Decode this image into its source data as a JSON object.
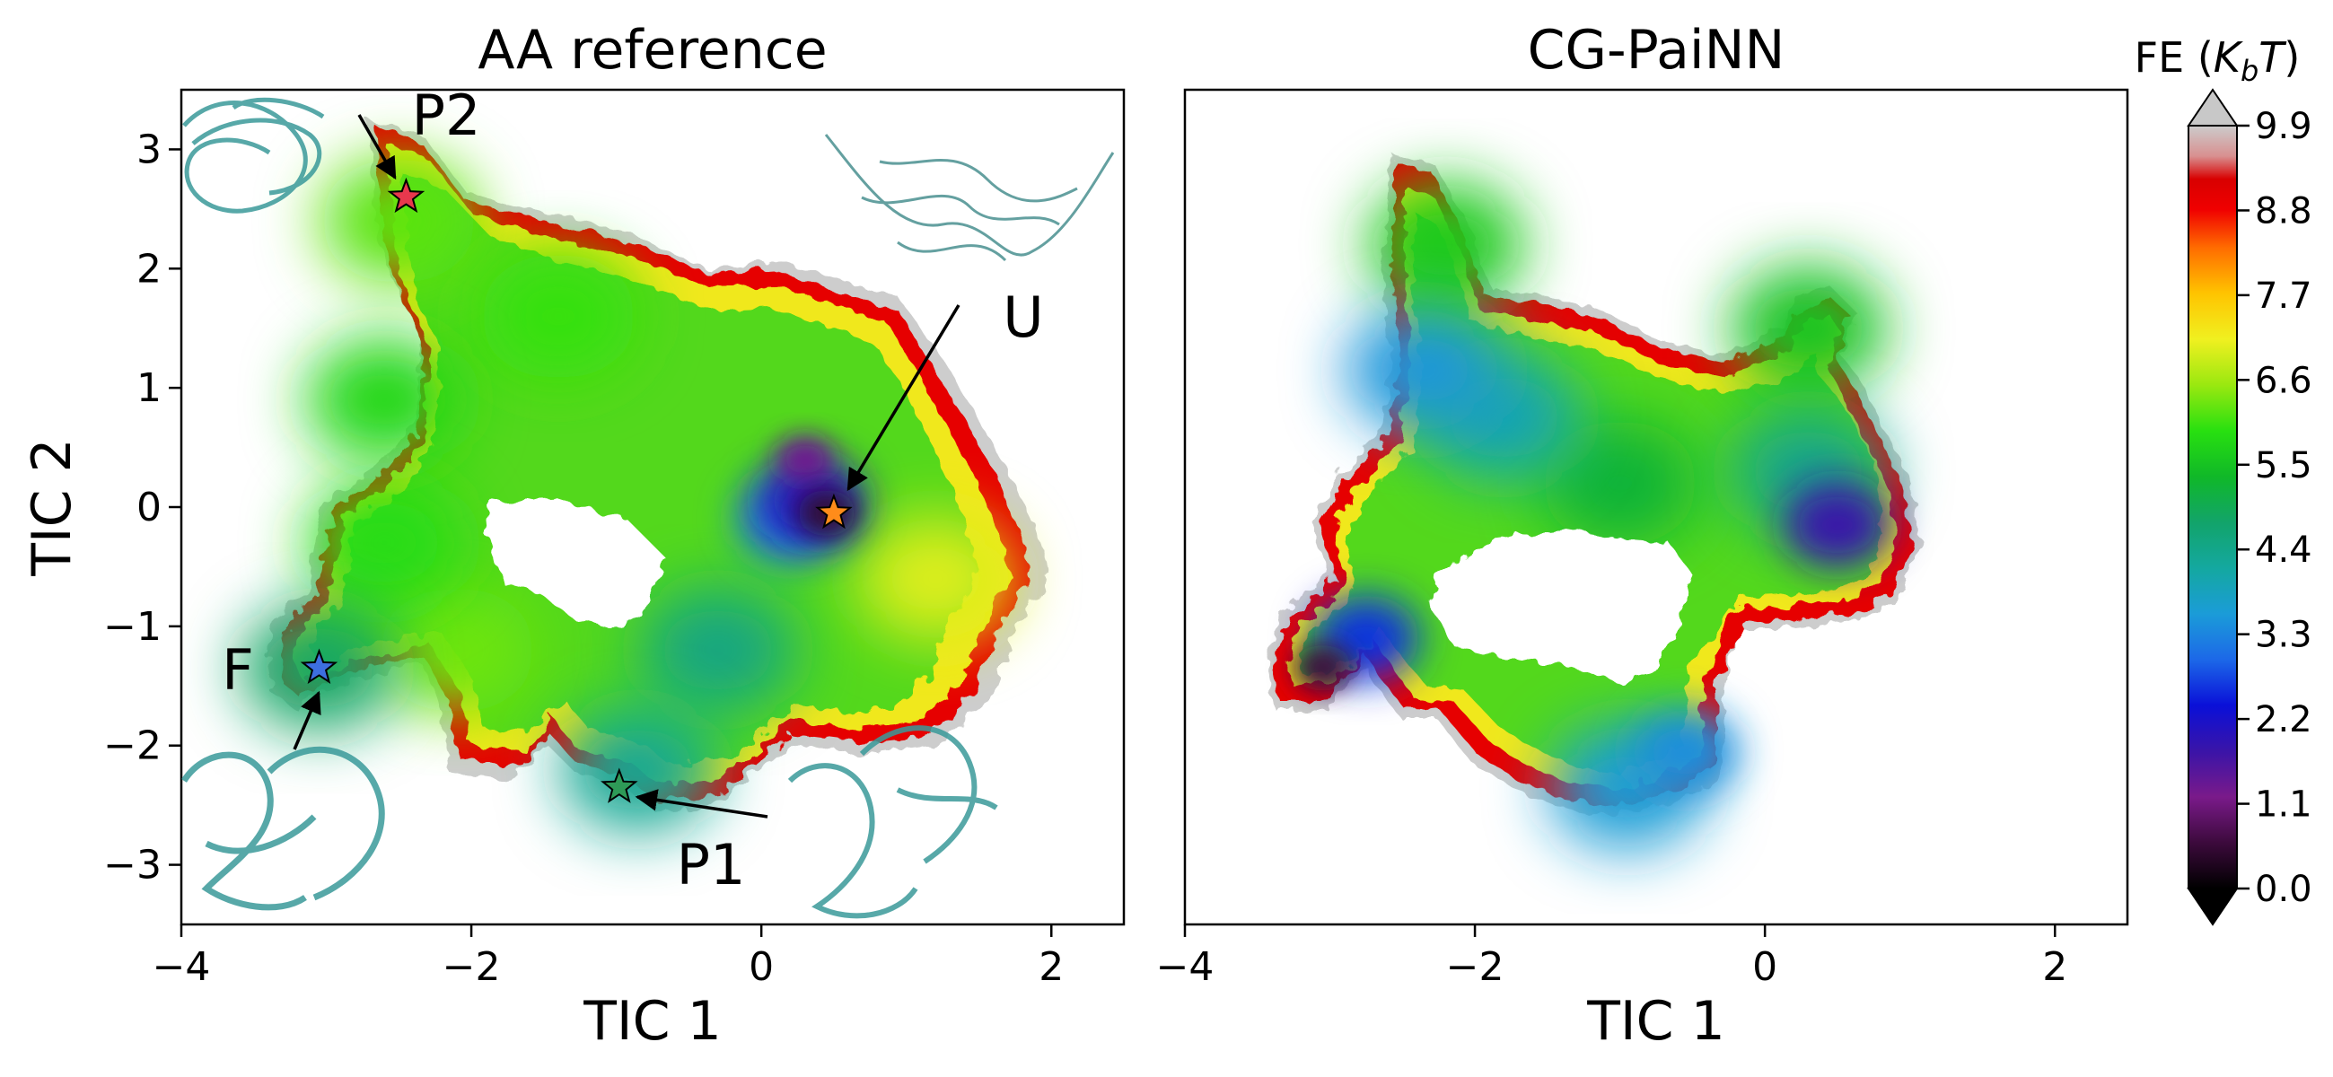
{
  "chart_data": [
    {
      "type": "heatmap",
      "title": "AA reference",
      "xlabel": "TIC 1",
      "ylabel": "TIC 2",
      "xlim": [
        -4,
        2.5
      ],
      "ylim": [
        -3.5,
        3.5
      ],
      "xticks": [
        -4,
        -2,
        0,
        2
      ],
      "yticks": [
        -3,
        -2,
        -1,
        0,
        1,
        2,
        3
      ],
      "xtick_labels": [
        "−4",
        "−2",
        "0",
        "2"
      ],
      "ytick_labels": [
        "−3",
        "−2",
        "−1",
        "0",
        "1",
        "2",
        "3"
      ],
      "states": [
        {
          "label": "U",
          "x": 0.5,
          "y": -0.05,
          "color": "#ff8c1a"
        },
        {
          "label": "P2",
          "x": -2.45,
          "y": 2.6,
          "color": "#e8384d"
        },
        {
          "label": "F",
          "x": -3.05,
          "y": -1.35,
          "color": "#3d6fe0"
        },
        {
          "label": "P1",
          "x": -0.98,
          "y": -2.35,
          "color": "#2e9a57"
        }
      ],
      "basins": [
        {
          "x": 0.45,
          "y": -0.05,
          "level": 0.5
        },
        {
          "x": 0.3,
          "y": 0.4,
          "level": 1.3
        },
        {
          "x": 0.35,
          "y": 0.05,
          "level": 2.0
        },
        {
          "x": 0.2,
          "y": -0.1,
          "level": 3.2
        },
        {
          "x": -0.3,
          "y": -1.2,
          "level": 4.5
        },
        {
          "x": -0.85,
          "y": -2.2,
          "level": 4.3
        },
        {
          "x": -2.6,
          "y": 0.9,
          "level": 5.8
        },
        {
          "x": -2.5,
          "y": 2.4,
          "level": 6.2
        },
        {
          "x": -3.05,
          "y": -1.35,
          "level": 4.8
        },
        {
          "x": -2.6,
          "y": -0.3,
          "level": 5.9
        },
        {
          "x": -2.1,
          "y": -1.2,
          "level": 6.3
        },
        {
          "x": -1.4,
          "y": 1.6,
          "level": 6.0
        },
        {
          "x": 1.2,
          "y": -0.6,
          "level": 7.0
        }
      ]
    },
    {
      "type": "heatmap",
      "title": "CG-PaiNN",
      "xlabel": "TIC 1",
      "ylabel": "",
      "xlim": [
        -4,
        2.5
      ],
      "ylim": [
        -3.5,
        3.5
      ],
      "xticks": [
        -4,
        -2,
        0,
        2
      ],
      "xtick_labels": [
        "−4",
        "−2",
        "0",
        "2"
      ],
      "basins": [
        {
          "x": -3.05,
          "y": -1.35,
          "level": 0.6
        },
        {
          "x": -2.75,
          "y": -1.1,
          "level": 2.6
        },
        {
          "x": 0.5,
          "y": -0.15,
          "level": 1.8
        },
        {
          "x": -1.8,
          "y": 0.75,
          "level": 4.0
        },
        {
          "x": -2.35,
          "y": 1.15,
          "level": 3.5
        },
        {
          "x": -0.55,
          "y": -2.05,
          "level": 3.4
        },
        {
          "x": -0.95,
          "y": -2.35,
          "level": 3.6
        },
        {
          "x": 0.3,
          "y": 0.3,
          "level": 4.4
        },
        {
          "x": -2.2,
          "y": 2.2,
          "level": 5.6
        },
        {
          "x": 0.3,
          "y": 1.5,
          "level": 5.5
        },
        {
          "x": -1.0,
          "y": 0.2,
          "level": 5.2
        }
      ]
    }
  ],
  "colorbar": {
    "title_prefix": "FE (",
    "title_var": "K",
    "title_sub": "b",
    "title_var2": "T",
    "title_suffix": ")",
    "min": 0.0,
    "max": 9.9,
    "extend": "both",
    "ticks": [
      0.0,
      1.1,
      2.2,
      3.3,
      4.4,
      5.5,
      6.6,
      7.7,
      8.8,
      9.9
    ],
    "tick_labels": [
      "0.0",
      "1.1",
      "2.2",
      "3.3",
      "4.4",
      "5.5",
      "6.6",
      "7.7",
      "8.8",
      "9.9"
    ]
  }
}
